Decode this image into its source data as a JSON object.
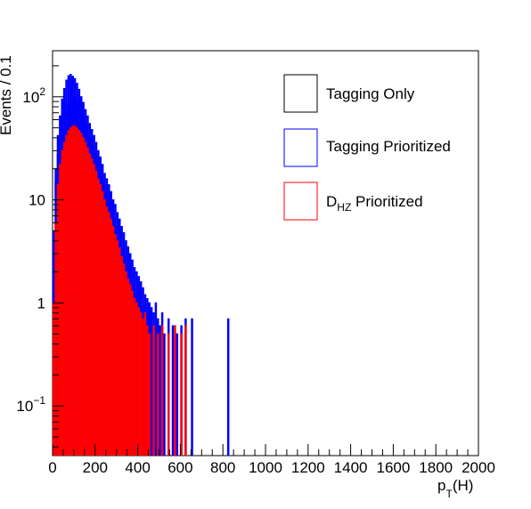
{
  "chart_data": {
    "type": "histogram",
    "xlabel": "p",
    "xlabel_sub": "T",
    "xlabel_suffix": "(H)",
    "ylabel": "Events / 0.1",
    "xlim": [
      0,
      2000
    ],
    "ylim": [
      0.033,
      280
    ],
    "yscale": "log",
    "grid": false,
    "legend_position": "top-right",
    "x_ticks": [
      "0",
      "200",
      "400",
      "600",
      "800",
      "1000",
      "1200",
      "1400",
      "1600",
      "1800",
      "2000"
    ],
    "y_ticks": [
      {
        "value": 0.1,
        "base": "10",
        "exp": "−1"
      },
      {
        "value": 1,
        "base": "1",
        "exp": ""
      },
      {
        "value": 10,
        "base": "10",
        "exp": ""
      },
      {
        "value": 100,
        "base": "10",
        "exp": "2"
      }
    ],
    "bin_width": 5,
    "series": [
      {
        "name": "Tagging Only",
        "color": "#000000",
        "points": [
          [
            5,
            4
          ],
          [
            15,
            15
          ],
          [
            25,
            28
          ],
          [
            35,
            40
          ],
          [
            45,
            55
          ],
          [
            55,
            62
          ],
          [
            65,
            75
          ],
          [
            75,
            85
          ],
          [
            85,
            92
          ],
          [
            95,
            98
          ],
          [
            105,
            100
          ],
          [
            115,
            92
          ],
          [
            125,
            85
          ],
          [
            135,
            75
          ],
          [
            145,
            62
          ],
          [
            155,
            55
          ],
          [
            165,
            48
          ],
          [
            175,
            40
          ],
          [
            185,
            33
          ],
          [
            195,
            28
          ],
          [
            205,
            24
          ],
          [
            215,
            20
          ],
          [
            225,
            17
          ],
          [
            235,
            15
          ],
          [
            245,
            12
          ],
          [
            255,
            10
          ],
          [
            265,
            9
          ],
          [
            275,
            7.5
          ],
          [
            285,
            6.5
          ],
          [
            295,
            5.5
          ],
          [
            305,
            4.5
          ],
          [
            315,
            3.8
          ],
          [
            325,
            3.2
          ],
          [
            335,
            2.8
          ],
          [
            345,
            2.2
          ],
          [
            355,
            1.8
          ],
          [
            365,
            1.6
          ],
          [
            375,
            1.4
          ],
          [
            385,
            1.2
          ],
          [
            395,
            1.1
          ],
          [
            405,
            1
          ],
          [
            415,
            0.8
          ],
          [
            425,
            0.9
          ],
          [
            435,
            0.7
          ],
          [
            445,
            0.8
          ],
          [
            455,
            0.6
          ],
          [
            465,
            0.5
          ],
          [
            475,
            0.6
          ],
          [
            485,
            0.5
          ]
        ]
      },
      {
        "name": "Tagging Prioritized",
        "color": "#0000ff",
        "points": [
          [
            5,
            5
          ],
          [
            15,
            20
          ],
          [
            25,
            42
          ],
          [
            35,
            65
          ],
          [
            45,
            95
          ],
          [
            55,
            120
          ],
          [
            65,
            145
          ],
          [
            75,
            160
          ],
          [
            85,
            165
          ],
          [
            95,
            158
          ],
          [
            105,
            150
          ],
          [
            115,
            135
          ],
          [
            125,
            118
          ],
          [
            135,
            100
          ],
          [
            145,
            88
          ],
          [
            155,
            75
          ],
          [
            165,
            65
          ],
          [
            175,
            55
          ],
          [
            185,
            48
          ],
          [
            195,
            42
          ],
          [
            205,
            36
          ],
          [
            215,
            30
          ],
          [
            225,
            26
          ],
          [
            235,
            22
          ],
          [
            245,
            18
          ],
          [
            255,
            16
          ],
          [
            265,
            14
          ],
          [
            275,
            12
          ],
          [
            285,
            10
          ],
          [
            295,
            9
          ],
          [
            305,
            7.5
          ],
          [
            315,
            6.5
          ],
          [
            325,
            5.5
          ],
          [
            335,
            4.8
          ],
          [
            345,
            4
          ],
          [
            355,
            3.5
          ],
          [
            365,
            3
          ],
          [
            375,
            2.6
          ],
          [
            385,
            2.2
          ],
          [
            395,
            2
          ],
          [
            405,
            1.8
          ],
          [
            415,
            1.6
          ],
          [
            425,
            1.4
          ],
          [
            435,
            1.2
          ],
          [
            445,
            1.1
          ],
          [
            455,
            1
          ],
          [
            465,
            0.9
          ],
          [
            475,
            0.8
          ],
          [
            485,
            1
          ],
          [
            495,
            0.7
          ],
          [
            505,
            0.6
          ],
          [
            515,
            0.8
          ],
          [
            525,
            0.5
          ],
          [
            545,
            0.7
          ],
          [
            565,
            0.6
          ],
          [
            585,
            0.5
          ],
          [
            605,
            0.6
          ],
          [
            625,
            0.7
          ],
          [
            655,
            0.7
          ],
          [
            825,
            0.7
          ]
        ]
      },
      {
        "name": "D_HZ Prioritized",
        "label_main": "D",
        "label_sub": "HZ",
        "label_rest": " Prioritized",
        "color": "#ff0000",
        "points": [
          [
            5,
            1
          ],
          [
            15,
            6
          ],
          [
            25,
            14
          ],
          [
            35,
            22
          ],
          [
            45,
            30
          ],
          [
            55,
            36
          ],
          [
            65,
            42
          ],
          [
            75,
            47
          ],
          [
            85,
            50
          ],
          [
            95,
            52
          ],
          [
            105,
            52
          ],
          [
            115,
            50
          ],
          [
            125,
            47
          ],
          [
            135,
            44
          ],
          [
            145,
            40
          ],
          [
            155,
            36
          ],
          [
            165,
            32
          ],
          [
            175,
            28
          ],
          [
            185,
            25
          ],
          [
            195,
            22
          ],
          [
            205,
            19
          ],
          [
            215,
            16
          ],
          [
            225,
            14
          ],
          [
            235,
            12
          ],
          [
            245,
            10
          ],
          [
            255,
            8.5
          ],
          [
            265,
            7.5
          ],
          [
            275,
            6.5
          ],
          [
            285,
            5.5
          ],
          [
            295,
            4.6
          ],
          [
            305,
            4
          ],
          [
            315,
            3.4
          ],
          [
            325,
            2.8
          ],
          [
            335,
            2.4
          ],
          [
            345,
            2
          ],
          [
            355,
            1.7
          ],
          [
            365,
            1.5
          ],
          [
            375,
            1.3
          ],
          [
            385,
            1.1
          ],
          [
            395,
            1
          ],
          [
            405,
            0.9
          ],
          [
            415,
            0.8
          ],
          [
            425,
            0.7
          ],
          [
            435,
            0.8
          ],
          [
            445,
            0.6
          ],
          [
            455,
            0.5
          ],
          [
            475,
            0.6
          ],
          [
            495,
            0.5
          ],
          [
            515,
            0.6
          ],
          [
            545,
            0.5
          ],
          [
            575,
            0.6
          ],
          [
            605,
            0.5
          ],
          [
            625,
            0.6
          ]
        ]
      }
    ]
  }
}
